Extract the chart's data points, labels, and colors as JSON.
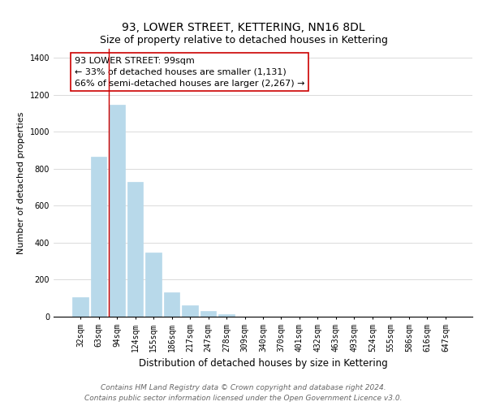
{
  "title": "93, LOWER STREET, KETTERING, NN16 8DL",
  "subtitle": "Size of property relative to detached houses in Kettering",
  "xlabel": "Distribution of detached houses by size in Kettering",
  "ylabel": "Number of detached properties",
  "categories": [
    "32sqm",
    "63sqm",
    "94sqm",
    "124sqm",
    "155sqm",
    "186sqm",
    "217sqm",
    "247sqm",
    "278sqm",
    "309sqm",
    "340sqm",
    "370sqm",
    "401sqm",
    "432sqm",
    "463sqm",
    "493sqm",
    "524sqm",
    "555sqm",
    "586sqm",
    "616sqm",
    "647sqm"
  ],
  "values": [
    105,
    865,
    1145,
    730,
    345,
    130,
    60,
    30,
    15,
    0,
    0,
    0,
    0,
    0,
    0,
    0,
    0,
    0,
    0,
    0,
    0
  ],
  "bar_color": "#b8d9ea",
  "bar_edge_color": "#b8d9ea",
  "vline_x_index": 2,
  "vline_color": "#cc0000",
  "annotation_line1": "93 LOWER STREET: 99sqm",
  "annotation_line2": "← 33% of detached houses are smaller (1,131)",
  "annotation_line3": "66% of semi-detached houses are larger (2,267) →",
  "annotation_box_color": "#ffffff",
  "annotation_box_edge": "#cc0000",
  "ylim": [
    0,
    1450
  ],
  "yticks": [
    0,
    200,
    400,
    600,
    800,
    1000,
    1200,
    1400
  ],
  "footer_line1": "Contains HM Land Registry data © Crown copyright and database right 2024.",
  "footer_line2": "Contains public sector information licensed under the Open Government Licence v3.0.",
  "title_fontsize": 10,
  "subtitle_fontsize": 9,
  "xlabel_fontsize": 8.5,
  "ylabel_fontsize": 8,
  "tick_fontsize": 7,
  "annotation_fontsize": 8,
  "footer_fontsize": 6.5
}
